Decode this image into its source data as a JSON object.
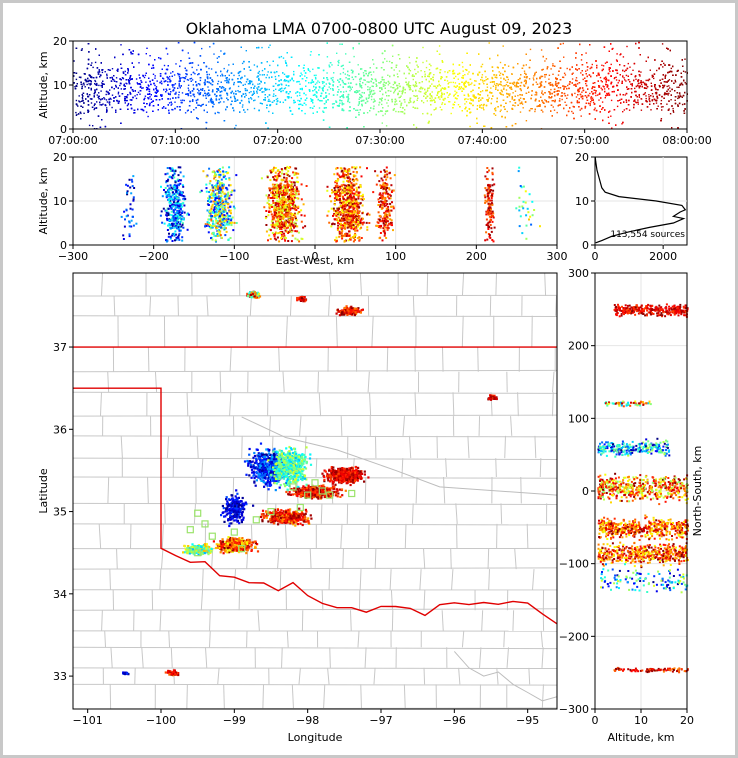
{
  "title": "Oklahoma LMA 0700-0800 UTC August 09, 2023",
  "chart_data": [
    {
      "id": "time_height",
      "type": "scatter",
      "xlabel": "",
      "ylabel": "Altitude, km",
      "xlim": [
        "07:00:00",
        "08:00:00"
      ],
      "xticks": [
        "07:00:00",
        "07:10:00",
        "07:20:00",
        "07:30:00",
        "07:40:00",
        "07:50:00",
        "08:00:00"
      ],
      "ylim": [
        0,
        20
      ],
      "yticks": [
        "0",
        "10",
        "20"
      ],
      "color_by": "time",
      "colormap": "jet"
    },
    {
      "id": "ew_height",
      "type": "scatter",
      "xlabel": "East-West, km",
      "ylabel": "Altitude, km",
      "xlim": [
        -300,
        300
      ],
      "xticks": [
        "−300",
        "−200",
        "−100",
        "0",
        "100",
        "200",
        "300"
      ],
      "ylim": [
        0,
        20
      ],
      "yticks": [
        "0",
        "10",
        "20"
      ]
    },
    {
      "id": "altitude_histogram",
      "type": "line",
      "xlim": [
        0,
        2700
      ],
      "xticks": [
        "0",
        "2000"
      ],
      "ylim": [
        0,
        20
      ],
      "yticks": [
        "0",
        "10",
        "20"
      ],
      "annotation": "113,554 sources",
      "profile": [
        {
          "count": 20,
          "alt": 0.5
        },
        {
          "count": 200,
          "alt": 1.0
        },
        {
          "count": 500,
          "alt": 2.0
        },
        {
          "count": 1000,
          "alt": 3.0
        },
        {
          "count": 1600,
          "alt": 4.0
        },
        {
          "count": 2300,
          "alt": 5.0
        },
        {
          "count": 2600,
          "alt": 6.0
        },
        {
          "count": 2300,
          "alt": 6.5
        },
        {
          "count": 2500,
          "alt": 7.5
        },
        {
          "count": 2650,
          "alt": 8.0
        },
        {
          "count": 2550,
          "alt": 9.0
        },
        {
          "count": 1800,
          "alt": 10.0
        },
        {
          "count": 700,
          "alt": 11.0
        },
        {
          "count": 300,
          "alt": 12.0
        },
        {
          "count": 200,
          "alt": 13.0
        },
        {
          "count": 130,
          "alt": 15.0
        },
        {
          "count": 60,
          "alt": 17.0
        },
        {
          "count": 20,
          "alt": 19.0
        },
        {
          "count": 5,
          "alt": 20.0
        }
      ]
    },
    {
      "id": "plan_view",
      "type": "scatter",
      "xlabel": "Longitude",
      "ylabel": "Latitude",
      "xlim": [
        -101.2,
        -94.6
      ],
      "xticks": [
        "−101",
        "−100",
        "−99",
        "−98",
        "−97",
        "−96",
        "−95"
      ],
      "ylim": [
        32.6,
        37.9
      ],
      "yticks": [
        "33",
        "34",
        "35",
        "36",
        "37"
      ]
    },
    {
      "id": "ns_height",
      "type": "scatter",
      "xlabel": "Altitude, km",
      "ylabel": "North-South, km",
      "xlim": [
        0,
        20
      ],
      "xticks": [
        "0",
        "10",
        "20"
      ],
      "ylim": [
        -300,
        300
      ],
      "yticks": [
        "−300",
        "−200",
        "−100",
        "0",
        "100",
        "200",
        "300"
      ]
    }
  ]
}
